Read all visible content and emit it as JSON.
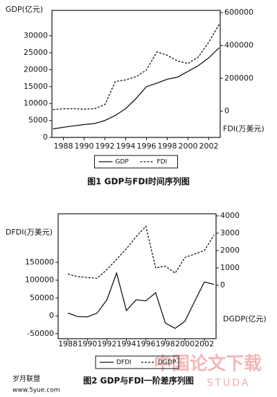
{
  "chart_data": [
    {
      "type": "line",
      "caption": "图1 GDP与FDI时间序列图",
      "ylabel": "GDP(亿元)",
      "y2label": "FDI(万美元)",
      "x": [
        1987,
        1988,
        1989,
        1990,
        1991,
        1992,
        1993,
        1994,
        1995,
        1996,
        1997,
        1998,
        1999,
        2000,
        2001,
        2002,
        2003
      ],
      "series": [
        {
          "name": "GDP",
          "color": "#111111",
          "linestyle": "solid",
          "values": [
            2500,
            3000,
            3400,
            3800,
            4100,
            5000,
            6500,
            8500,
            11500,
            15000,
            16000,
            17200,
            17800,
            19500,
            21200,
            23500,
            26500
          ]
        },
        {
          "name": "FDI",
          "color": "#111111",
          "linestyle": "dashed",
          "axis": "y2",
          "values": [
            10000,
            15000,
            15000,
            12000,
            15000,
            40000,
            180000,
            190000,
            210000,
            250000,
            360000,
            340000,
            305000,
            290000,
            330000,
            420000,
            528000
          ]
        }
      ],
      "xlim": [
        1986.9,
        2003.1
      ],
      "xticks": [
        1988,
        1990,
        1992,
        1994,
        1996,
        1998,
        2000,
        2002
      ],
      "ylim": [
        0,
        37500
      ],
      "yticks": [
        0,
        5000,
        10000,
        15000,
        20000,
        25000,
        30000
      ],
      "y2lim": [
        -160000,
        613000
      ],
      "y2ticks": [
        0,
        200000,
        400000,
        600000
      ],
      "legend": "bottom"
    },
    {
      "type": "line",
      "caption": "图2 GDP与FDI一阶差序列图",
      "ylabel": "DFDI(万美元)",
      "y2label": "DGDP(亿元)",
      "x": [
        1988,
        1989,
        1990,
        1991,
        1992,
        1993,
        1994,
        1995,
        1996,
        1997,
        1998,
        1999,
        2000,
        2001,
        2002,
        2003
      ],
      "series": [
        {
          "name": "DFDI",
          "color": "#111111",
          "linestyle": "solid",
          "values": [
            8000,
            -2000,
            -3000,
            8000,
            45000,
            120000,
            15000,
            45000,
            42000,
            65000,
            -20000,
            -35000,
            -15000,
            40000,
            95000,
            88000
          ]
        },
        {
          "name": "DGDP",
          "color": "#111111",
          "linestyle": "dashed",
          "axis": "y2",
          "values": [
            650,
            500,
            450,
            400,
            900,
            1500,
            2100,
            2800,
            3400,
            1000,
            1100,
            700,
            1600,
            1800,
            2000,
            2900
          ]
        }
      ],
      "xlim": [
        1987,
        2003.2
      ],
      "xticks": [
        1988,
        1990,
        1992,
        1994,
        1996,
        1998,
        2000,
        2002
      ],
      "ylim": [
        -64000,
        286000
      ],
      "yticks": [
        -50000,
        0,
        50000,
        100000,
        150000
      ],
      "y2lim": [
        -3080,
        4120
      ],
      "y2ticks": [
        0,
        1000,
        2000,
        3000,
        4000
      ],
      "legend": "bottom"
    }
  ],
  "watermarks": {
    "left": "岁月联盟",
    "left_url": "www.5yue.com",
    "right": "中国论文下载",
    "right_url": "STUDA"
  }
}
